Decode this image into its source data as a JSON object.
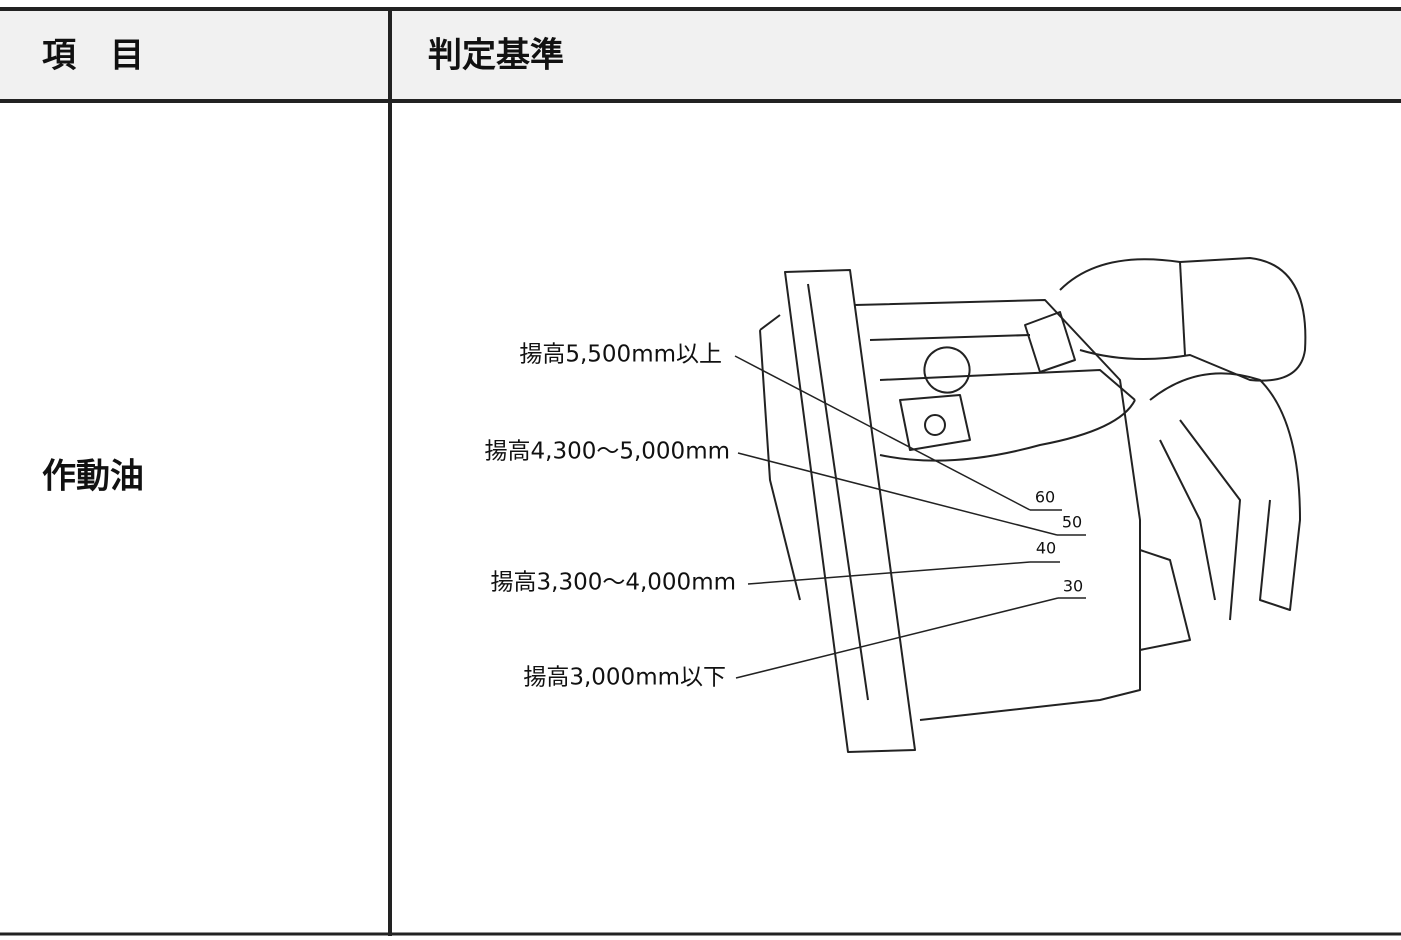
{
  "table": {
    "headers": [
      "項　目",
      "判定基準"
    ],
    "rows": [
      {
        "item": "作動油"
      }
    ]
  },
  "figure": {
    "labels": [
      "揚高5,500mm以上",
      "揚高4,300～5,000mm",
      "揚高3,300～4,000mm",
      "揚高3,000mm以下"
    ],
    "gauge_marks": [
      "60",
      "50",
      "40",
      "30"
    ]
  }
}
